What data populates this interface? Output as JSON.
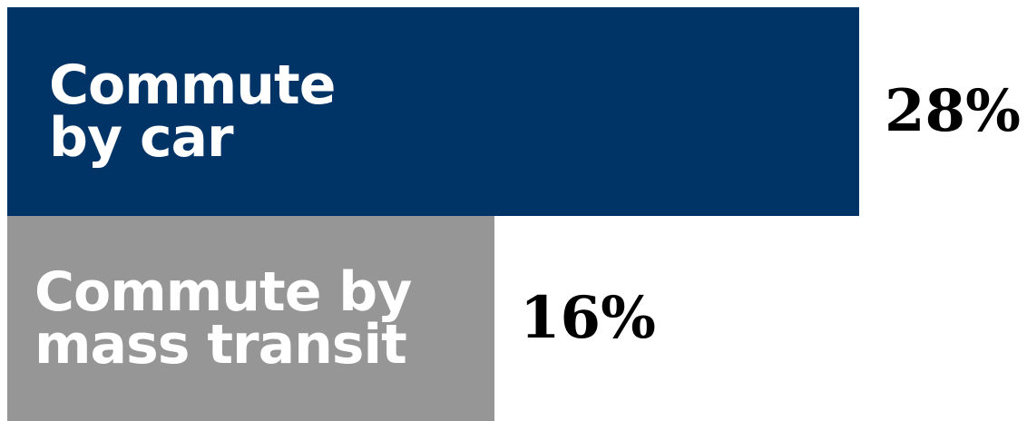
{
  "chart_data": {
    "type": "bar",
    "orientation": "horizontal",
    "categories": [
      "Commute\nby car",
      "Commute by\nmass transit"
    ],
    "values": [
      28,
      16
    ],
    "value_labels": [
      "28%",
      "16%"
    ],
    "unit": "%",
    "colors": [
      "#003366",
      "#969696"
    ],
    "xlim": [
      0,
      33.5
    ]
  }
}
